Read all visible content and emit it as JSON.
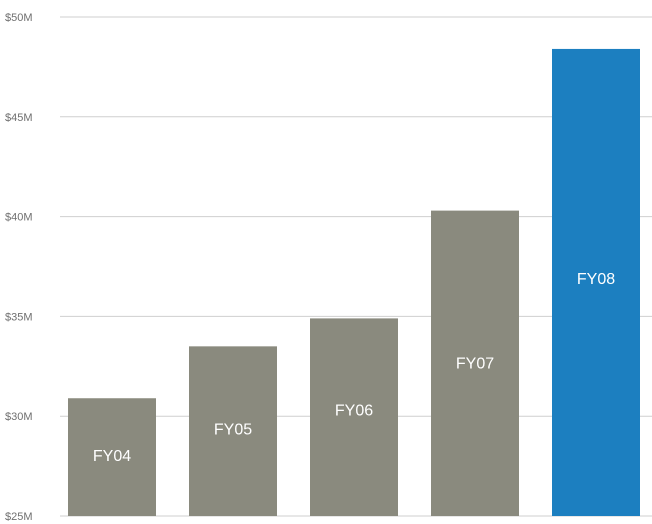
{
  "chart_data": {
    "type": "bar",
    "title": "",
    "xlabel": "",
    "ylabel": "",
    "categories": [
      "FY04",
      "FY05",
      "FY06",
      "FY07",
      "FY08"
    ],
    "values": [
      30.9,
      33.5,
      34.9,
      40.3,
      48.4
    ],
    "ylim": [
      25,
      50
    ],
    "y_ticks": [
      {
        "value": 50,
        "label": "$50M"
      },
      {
        "value": 45,
        "label": "$45M"
      },
      {
        "value": 40,
        "label": "$40M"
      },
      {
        "value": 35,
        "label": "$35M"
      },
      {
        "value": 30,
        "label": "$30M"
      },
      {
        "value": 25,
        "label": "$25M"
      }
    ],
    "grid": true,
    "legend": "none",
    "bar_colors": [
      "#8a8a7e",
      "#8a8a7e",
      "#8a8a7e",
      "#8a8a7e",
      "#1c7fc0"
    ],
    "grid_color": "#cfcfcf",
    "label_color": "#ffffff"
  }
}
